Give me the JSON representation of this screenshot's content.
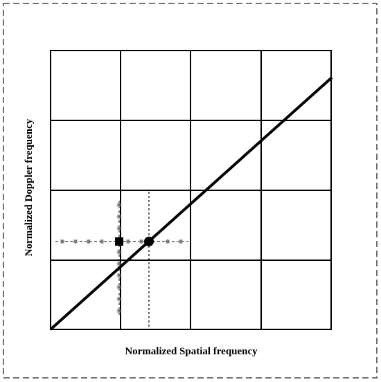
{
  "axes": {
    "x_label": "Normalized Spatial frequency",
    "y_label": "Normalized Doppler frequency"
  }
}
